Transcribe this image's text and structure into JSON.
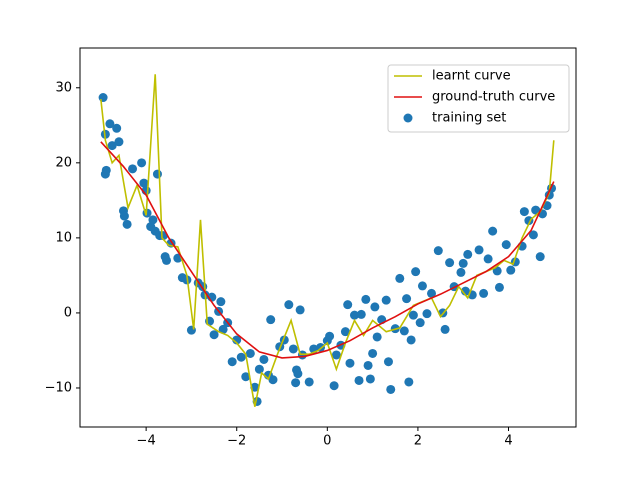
{
  "chart_data": {
    "type": "line",
    "xlim": [
      -5.46,
      5.49
    ],
    "ylim": [
      -15.2,
      35.3
    ],
    "xticks": [
      {
        "value": -4,
        "label": "−4"
      },
      {
        "value": -2,
        "label": "−2"
      },
      0,
      2,
      4
    ],
    "yticks": [
      {
        "value": -10,
        "label": "−10"
      },
      0,
      10,
      20,
      30
    ],
    "legend": "upper right",
    "series": [
      {
        "name": "learnt curve",
        "type": "line",
        "color": "#bfbf00",
        "x": [
          -5,
          -4.9,
          -4.75,
          -4.6,
          -4.4,
          -4.2,
          -4,
          -3.8,
          -3.65,
          -3.5,
          -3.3,
          -3.1,
          -2.95,
          -2.8,
          -2.65,
          -2.4,
          -2.2,
          -2,
          -1.8,
          -1.6,
          -1.45,
          -1.3,
          -1.1,
          -0.8,
          -0.6,
          -0.4,
          -0.2,
          0,
          0.2,
          0.4,
          0.6,
          0.8,
          1,
          1.3,
          1.6,
          1.9,
          2.1,
          2.3,
          2.5,
          2.7,
          2.9,
          3.1,
          3.3,
          3.5,
          3.7,
          3.9,
          4.1,
          4.3,
          4.5,
          4.7,
          4.9,
          5
        ],
        "values": [
          28.5,
          23,
          20,
          21,
          14,
          17,
          13,
          31.8,
          10,
          9,
          8.8,
          5,
          -2.2,
          12.4,
          -1.5,
          -2.5,
          -3,
          -4,
          -5.5,
          -12.5,
          -8,
          -8.8,
          -5.5,
          -1,
          -5.5,
          -5.5,
          -5,
          -4,
          -7.5,
          -4,
          -1,
          -3,
          -1,
          -2.5,
          -2,
          1,
          1.5,
          2,
          -0.5,
          1,
          3.5,
          2,
          5,
          5.5,
          6,
          7,
          6.5,
          10,
          12.5,
          13.5,
          16,
          23
        ]
      },
      {
        "name": "ground-truth curve",
        "type": "line",
        "color": "#e01010",
        "x": [
          -5,
          -4.5,
          -4,
          -3.5,
          -3,
          -2.5,
          -2,
          -1.5,
          -1,
          -0.5,
          0,
          0.5,
          1,
          1.5,
          2,
          2.5,
          3,
          3.5,
          4,
          4.5,
          5
        ],
        "values": [
          22.8,
          19.5,
          15.7,
          10,
          5.5,
          1,
          -2.8,
          -5.2,
          -6,
          -5.8,
          -5,
          -3.7,
          -2,
          -0.5,
          1.2,
          2.5,
          4,
          5.5,
          7.5,
          11,
          17.5
        ]
      },
      {
        "name": "training set",
        "type": "scatter",
        "color": "#1f77b4",
        "x": [
          -4.95,
          -4.9,
          -4.9,
          -4.88,
          -4.8,
          -4.75,
          -4.65,
          -4.6,
          -4.5,
          -4.48,
          -4.42,
          -4.3,
          -4.1,
          -4.05,
          -4.0,
          -3.98,
          -3.9,
          -3.85,
          -3.8,
          -3.75,
          -3.7,
          -3.62,
          -3.58,
          -3.55,
          -3.45,
          -3.3,
          -3.2,
          -3.1,
          -3.0,
          -2.85,
          -2.75,
          -2.7,
          -2.6,
          -2.55,
          -2.5,
          -2.4,
          -2.35,
          -2.3,
          -2.2,
          -2.1,
          -2.0,
          -1.9,
          -1.8,
          -1.7,
          -1.6,
          -1.55,
          -1.5,
          -1.4,
          -1.3,
          -1.25,
          -1.2,
          -1.05,
          -0.95,
          -0.85,
          -0.75,
          -0.7,
          -0.68,
          -0.65,
          -0.6,
          -0.55,
          -0.4,
          -0.3,
          -0.15,
          0,
          0.05,
          0.15,
          0.2,
          0.3,
          0.4,
          0.45,
          0.5,
          0.6,
          0.7,
          0.75,
          0.85,
          0.9,
          0.95,
          1.0,
          1.05,
          1.1,
          1.2,
          1.3,
          1.35,
          1.4,
          1.5,
          1.6,
          1.7,
          1.75,
          1.8,
          1.85,
          1.9,
          1.95,
          2.05,
          2.1,
          2.2,
          2.3,
          2.45,
          2.55,
          2.6,
          2.7,
          2.8,
          2.95,
          3.0,
          3.05,
          3.1,
          3.2,
          3.35,
          3.45,
          3.55,
          3.65,
          3.75,
          3.8,
          3.95,
          4.05,
          4.15,
          4.3,
          4.35,
          4.45,
          4.55,
          4.6,
          4.7,
          4.75,
          4.85,
          4.9,
          4.95
        ],
        "values": [
          28.7,
          23.8,
          18.5,
          19,
          25.2,
          22.3,
          24.6,
          22.8,
          13.6,
          12.9,
          11.8,
          19.2,
          20,
          17.3,
          16.3,
          13.3,
          11.5,
          12.4,
          10.9,
          18.5,
          10.3,
          10.3,
          7.5,
          7,
          9.3,
          7.3,
          4.7,
          4.4,
          -2.3,
          4,
          3.5,
          2.4,
          -1.1,
          2.1,
          -2.9,
          0.2,
          1.5,
          -2.2,
          -1.3,
          -6.5,
          -3.6,
          -5.9,
          -8.5,
          -5.4,
          -9.9,
          -11.8,
          -7.5,
          -6.2,
          -8.3,
          -0.9,
          -8.9,
          -4.5,
          -3.6,
          1.1,
          -4.8,
          -9.3,
          -7.6,
          -8.1,
          0.4,
          -5.6,
          -9.2,
          -4.8,
          -4.6,
          -3.7,
          -3.1,
          -9.7,
          -5.6,
          -4.3,
          -2.5,
          1.1,
          -6.7,
          -0.3,
          -9,
          -0.2,
          1.8,
          -7,
          -8.8,
          -5.4,
          0.8,
          -3.2,
          -0.9,
          1.7,
          -6.5,
          -10.2,
          -2.1,
          4.6,
          -2.4,
          1.9,
          -9.2,
          -3.6,
          -0.3,
          5.5,
          -1.3,
          3.6,
          -0.1,
          2.6,
          8.3,
          0,
          -2.2,
          6.7,
          3.5,
          5.4,
          6.6,
          2.9,
          7.8,
          2.4,
          8.4,
          2.6,
          7.2,
          10.9,
          5.6,
          3.4,
          9.1,
          5.7,
          6.8,
          8.9,
          13.5,
          12.3,
          10.4,
          13.7,
          7.5,
          13.2,
          14.3,
          15.7,
          16.6
        ]
      }
    ]
  }
}
